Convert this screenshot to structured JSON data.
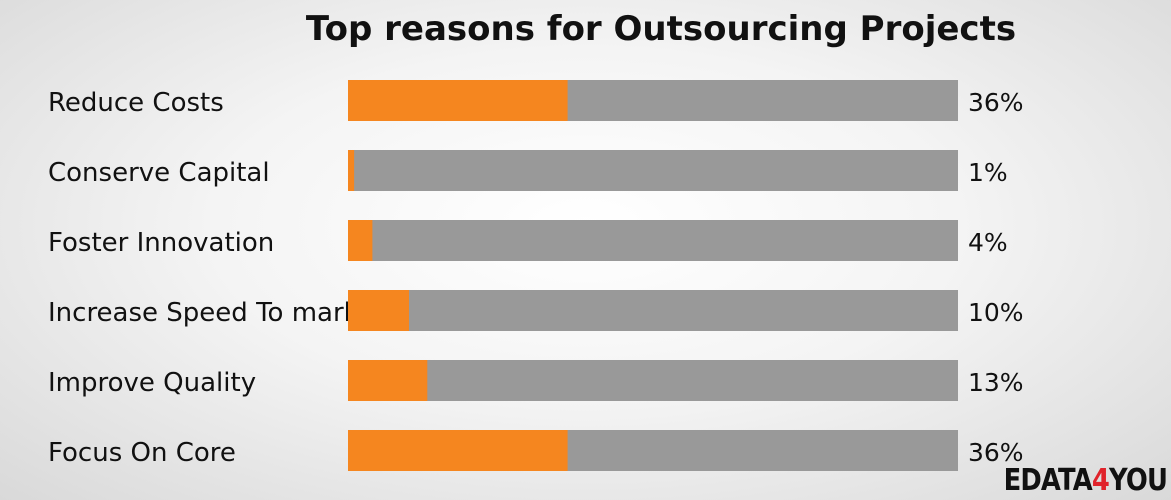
{
  "chart_data": {
    "type": "bar",
    "orientation": "horizontal",
    "title": "Top reasons for Outsourcing Projects",
    "categories": [
      "Reduce Costs",
      "Conserve Capital",
      "Foster Innovation",
      "Increase Speed To market",
      "Improve Quality",
      "Focus On Core"
    ],
    "values": [
      36,
      1,
      4,
      10,
      13,
      36
    ],
    "value_labels": [
      "36%",
      "1%",
      "4%",
      "10%",
      "13%",
      "36%"
    ],
    "xlim": [
      0,
      100
    ],
    "bar_color": "#f5861f",
    "track_color": "#999999",
    "grid": false,
    "legend": "none"
  },
  "logo": {
    "prefix": "EDATA",
    "accent": "4",
    "suffix": "YOU",
    "accent_color": "#e0232b"
  }
}
